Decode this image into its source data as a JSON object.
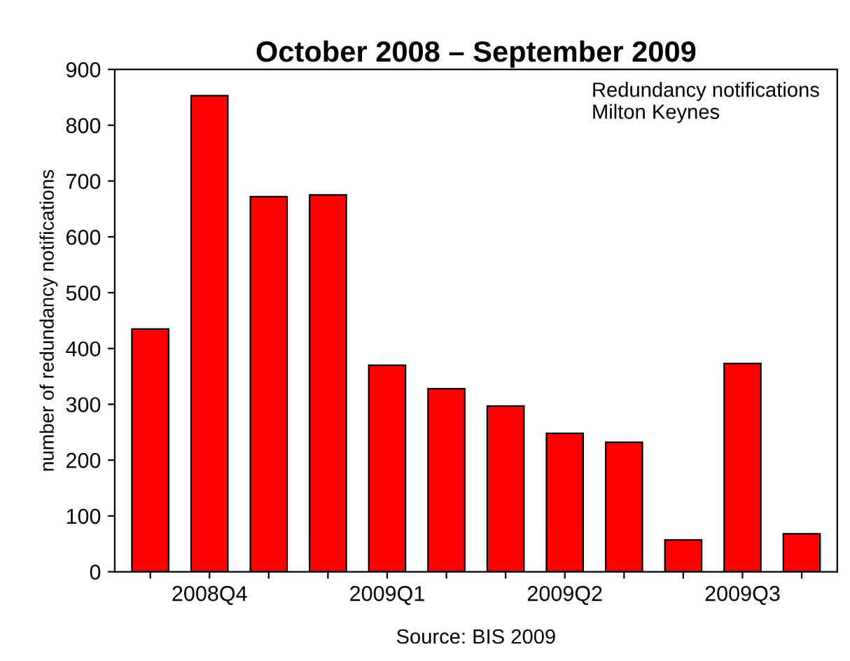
{
  "chart_data": {
    "type": "bar",
    "title": "October 2008 – September 2009",
    "ylabel": "number of redundancy notifications",
    "categories": [
      null,
      "2008Q4",
      null,
      null,
      "2009Q1",
      null,
      null,
      "2009Q2",
      null,
      null,
      "2009Q3",
      null
    ],
    "values": [
      435,
      853,
      672,
      675,
      370,
      328,
      297,
      248,
      232,
      57,
      373,
      68
    ],
    "color": "#ff0000",
    "ylim": [
      0,
      900
    ],
    "yticks": [
      0,
      100,
      200,
      300,
      400,
      500,
      600,
      700,
      800,
      900
    ],
    "grid": false,
    "annotations": [
      "Redundancy notifications\nMilton Keynes",
      "Source: BIS 2009"
    ]
  }
}
